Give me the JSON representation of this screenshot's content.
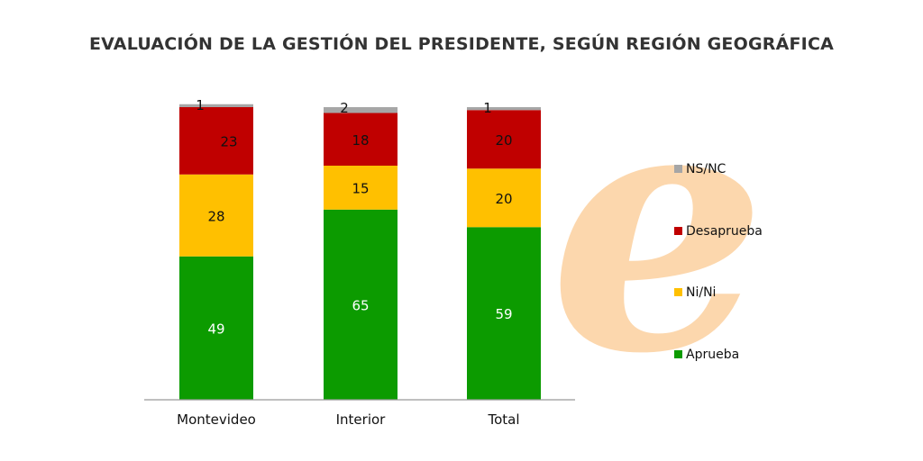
{
  "chart_data": {
    "type": "bar",
    "stacked": true,
    "title": "EVALUACIÓN DE LA GESTIÓN DEL PRESIDENTE, SEGÚN REGIÓN GEOGRÁFICA",
    "categories": [
      "Montevideo",
      "Interior",
      "Total"
    ],
    "series": [
      {
        "name": "Aprueba",
        "color": "#0c9b00",
        "label_color": "#ffffff",
        "values": [
          49,
          65,
          59
        ]
      },
      {
        "name": "Ni/Ni",
        "color": "#ffc000",
        "label_color": "#111111",
        "values": [
          28,
          15,
          20
        ]
      },
      {
        "name": "Desaprueba",
        "color": "#c00000",
        "label_color": "#111111",
        "values": [
          23,
          18,
          20
        ]
      },
      {
        "name": "NS/NC",
        "color": "#a6a6a6",
        "label_color": "#111111",
        "values": [
          1,
          2,
          1
        ]
      }
    ],
    "legend_order": [
      "NS/NC",
      "Desaprueba",
      "Ni/Ni",
      "Aprueba"
    ],
    "legend_position": "right",
    "ylim": [
      0,
      100
    ],
    "xlabel": "",
    "ylabel": "",
    "grid": false
  },
  "watermark": {
    "letter": "e",
    "color": "#fcd7ad"
  }
}
